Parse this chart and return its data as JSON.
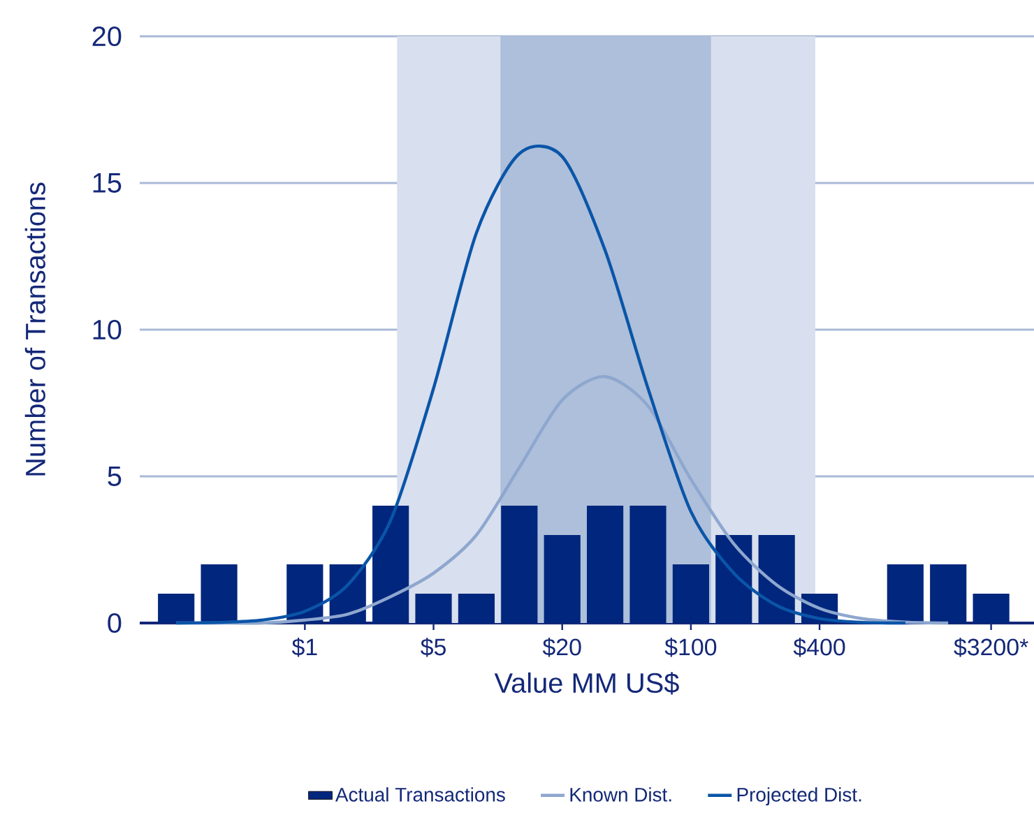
{
  "chart_data": {
    "type": "bar",
    "xlabel": "Value MM US$",
    "ylabel": "Number of Transactions",
    "categories": [
      null,
      null,
      null,
      "$1",
      null,
      null,
      "$5",
      null,
      null,
      "$20",
      null,
      null,
      "$100",
      null,
      null,
      "$400",
      null,
      null,
      null,
      "$3200*"
    ],
    "series": [
      {
        "name": "Actual Transactions",
        "color": "#00267d",
        "values": [
          1,
          2,
          0,
          2,
          2,
          4,
          1,
          1,
          4,
          3,
          4,
          4,
          2,
          3,
          3,
          1,
          0,
          2,
          2,
          1
        ]
      },
      {
        "name": "Known Dist.",
        "type": "line",
        "color": "#8ea7cf",
        "values": [
          0,
          0,
          0,
          0.1,
          0.3,
          0.9,
          1.7,
          3.0,
          5.3,
          7.6,
          8.4,
          7.4,
          4.9,
          2.7,
          1.3,
          0.5,
          0.15,
          0.03,
          0,
          null
        ]
      },
      {
        "name": "Projected Dist.",
        "type": "line",
        "color": "#0a55a8",
        "values": [
          0,
          0.02,
          0.1,
          0.4,
          1.3,
          3.5,
          8.0,
          13.3,
          16.0,
          15.9,
          12.7,
          8.0,
          3.8,
          1.7,
          0.6,
          0.15,
          0.02,
          0,
          null,
          null
        ]
      }
    ],
    "ylim": [
      0,
      20
    ],
    "yticks": [
      0,
      5,
      10,
      15,
      20
    ],
    "grid": "y",
    "legend": "bottom"
  }
}
